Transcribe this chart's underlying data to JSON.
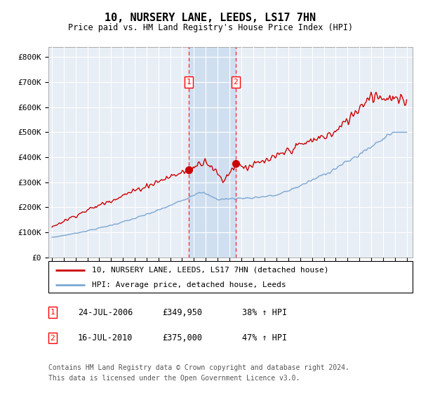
{
  "title": "10, NURSERY LANE, LEEDS, LS17 7HN",
  "subtitle": "Price paid vs. HM Land Registry's House Price Index (HPI)",
  "ylabel_ticks": [
    "£0",
    "£100K",
    "£200K",
    "£300K",
    "£400K",
    "£500K",
    "£600K",
    "£700K",
    "£800K"
  ],
  "ytick_values": [
    0,
    100000,
    200000,
    300000,
    400000,
    500000,
    600000,
    700000,
    800000
  ],
  "ylim": [
    0,
    840000
  ],
  "hpi_color": "#7ba7d4",
  "price_color": "#cc0000",
  "plot_bg_color": "#e8eef5",
  "grid_color": "#ffffff",
  "shade_color": "#d0dff0",
  "sale1_price": 349950,
  "sale1_hpi_pct": "38%",
  "sale1_date": "24-JUL-2006",
  "sale1_x": 2006.56,
  "sale2_price": 375000,
  "sale2_hpi_pct": "47%",
  "sale2_date": "16-JUL-2010",
  "sale2_x": 2010.54,
  "legend_label1": "10, NURSERY LANE, LEEDS, LS17 7HN (detached house)",
  "legend_label2": "HPI: Average price, detached house, Leeds",
  "footer": "Contains HM Land Registry data © Crown copyright and database right 2024.\nThis data is licensed under the Open Government Licence v3.0."
}
